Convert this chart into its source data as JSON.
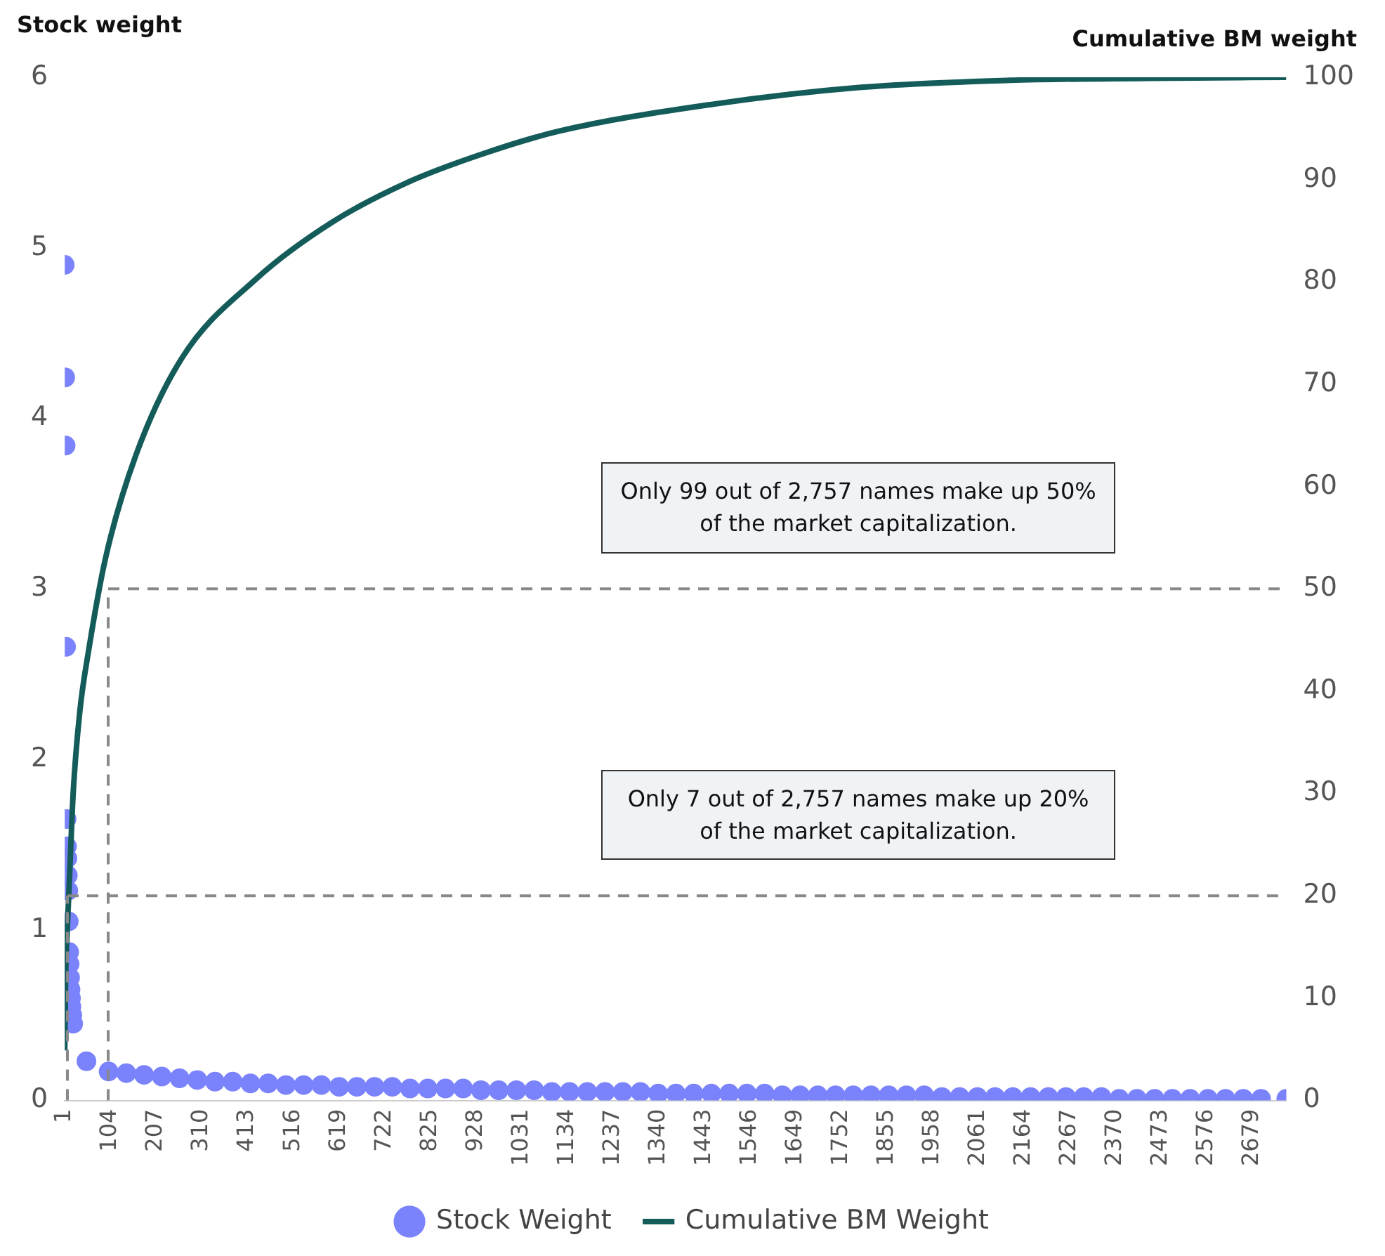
{
  "chart_data": {
    "type": "scatter",
    "ylabel": "Stock weight",
    "y2label": "Cumulative BM weight",
    "xlim": [
      1,
      2757
    ],
    "xticks": [
      1,
      104,
      207,
      310,
      413,
      516,
      619,
      722,
      825,
      928,
      1031,
      1134,
      1237,
      1340,
      1443,
      1546,
      1649,
      1752,
      1855,
      1958,
      2061,
      2164,
      2267,
      2370,
      2473,
      2576,
      2679
    ],
    "ylim": [
      0,
      6
    ],
    "yticks": [
      0,
      1,
      2,
      3,
      4,
      5,
      6
    ],
    "y2lim": [
      0,
      100
    ],
    "y2ticks": [
      0,
      10,
      20,
      30,
      40,
      50,
      60,
      70,
      80,
      90,
      100
    ],
    "grid": false,
    "legend": "bottom",
    "series": [
      {
        "name": "Stock Weight",
        "color": "#7a83fb",
        "x": [
          1,
          2,
          3,
          4,
          5,
          6,
          7,
          8,
          9,
          10,
          11,
          12,
          13,
          14,
          15,
          16,
          18,
          20,
          50,
          100,
          140,
          180,
          220,
          260,
          300,
          340,
          380,
          420,
          460,
          500,
          540,
          580,
          620,
          660,
          700,
          740,
          780,
          820,
          860,
          900,
          940,
          980,
          1020,
          1060,
          1100,
          1140,
          1180,
          1220,
          1260,
          1300,
          1340,
          1380,
          1420,
          1460,
          1500,
          1540,
          1580,
          1620,
          1660,
          1700,
          1740,
          1780,
          1820,
          1860,
          1900,
          1940,
          1980,
          2020,
          2060,
          2100,
          2140,
          2180,
          2220,
          2260,
          2300,
          2340,
          2380,
          2420,
          2460,
          2500,
          2540,
          2580,
          2620,
          2660,
          2700,
          2757
        ],
        "values": [
          4.9,
          4.24,
          3.84,
          2.66,
          1.65,
          1.49,
          1.42,
          1.32,
          1.23,
          1.05,
          0.87,
          0.8,
          0.72,
          0.65,
          0.6,
          0.55,
          0.5,
          0.45,
          0.23,
          0.17,
          0.16,
          0.15,
          0.14,
          0.13,
          0.12,
          0.11,
          0.11,
          0.1,
          0.1,
          0.09,
          0.09,
          0.09,
          0.08,
          0.08,
          0.08,
          0.08,
          0.07,
          0.07,
          0.07,
          0.07,
          0.06,
          0.06,
          0.06,
          0.06,
          0.05,
          0.05,
          0.05,
          0.05,
          0.05,
          0.05,
          0.04,
          0.04,
          0.04,
          0.04,
          0.04,
          0.04,
          0.04,
          0.03,
          0.03,
          0.03,
          0.03,
          0.03,
          0.03,
          0.03,
          0.03,
          0.03,
          0.02,
          0.02,
          0.02,
          0.02,
          0.02,
          0.02,
          0.02,
          0.02,
          0.02,
          0.02,
          0.01,
          0.01,
          0.01,
          0.01,
          0.01,
          0.01,
          0.01,
          0.01,
          0.01,
          0.01
        ]
      },
      {
        "name": "Cumulative BM Weight",
        "type": "line",
        "axis": "y2",
        "color": "#145c5a",
        "x": [
          1,
          3,
          7,
          12,
          20,
          35,
          55,
          93,
          161,
          263,
          433,
          603,
          773,
          943,
          1113,
          1453,
          1793,
          2133,
          2450,
          2757
        ],
        "values": [
          4.9,
          12,
          17,
          22,
          30,
          38,
          44,
          53,
          63,
          72.4,
          80.3,
          85.8,
          89.7,
          92.5,
          94.7,
          97.3,
          99,
          99.7,
          99.9,
          100
        ]
      }
    ],
    "ref_lines": [
      {
        "axis": "x",
        "value": 7
      },
      {
        "axis": "y2",
        "value": 20
      },
      {
        "axis": "x",
        "value": 99
      },
      {
        "axis": "y2",
        "value": 50
      }
    ],
    "annotations": [
      "Only 99 out of 2,757 names make up 50% of the market capitalization.",
      "Only 7 out of 2,757 names make up 20% of the market capitalization."
    ]
  }
}
